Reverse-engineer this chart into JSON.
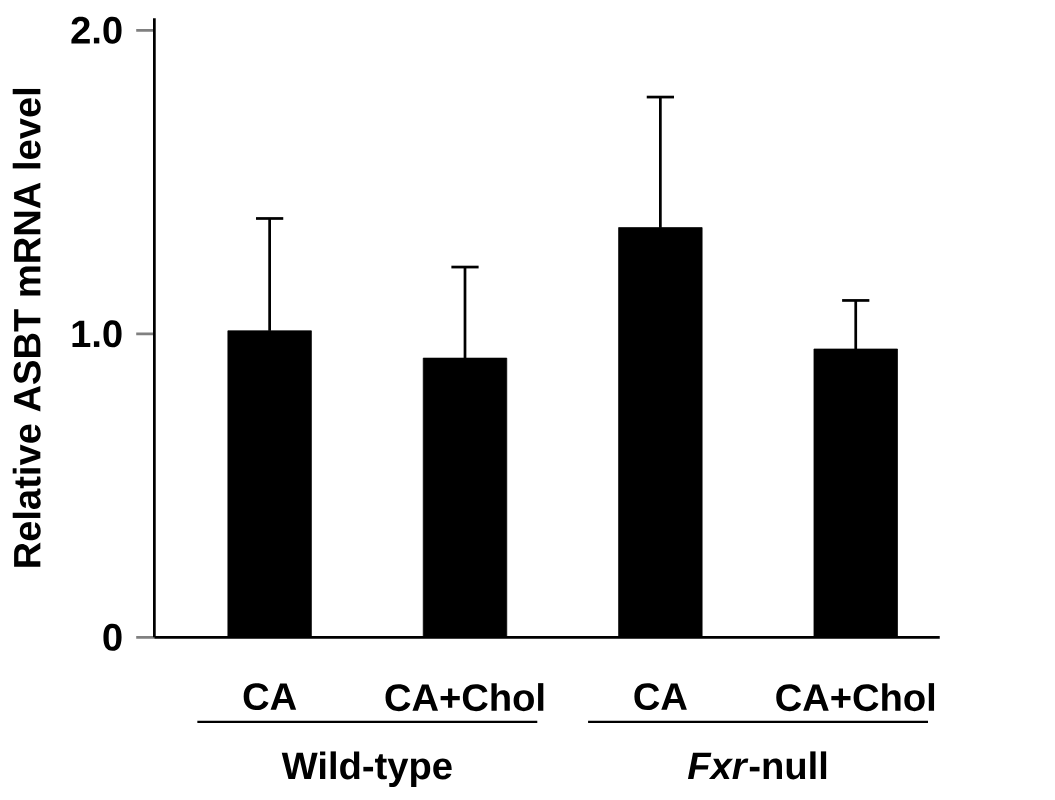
{
  "chart_data": {
    "type": "bar",
    "ylabel": "Relative ASBT mRNA level",
    "categories": [
      "CA",
      "CA+Chol",
      "CA",
      "CA+Chol"
    ],
    "values": [
      1.01,
      0.92,
      1.35,
      0.95
    ],
    "errors": [
      0.37,
      0.3,
      0.43,
      0.16
    ],
    "color": "#000000",
    "ylim": [
      0,
      2.04
    ],
    "yticks": [
      0,
      {
        "value": 1,
        "label": "1.0"
      },
      {
        "value": 2,
        "label": "2.0"
      }
    ],
    "annotations": [
      "Wild-type",
      "*Fxr*-null"
    ],
    "grid": false
  }
}
